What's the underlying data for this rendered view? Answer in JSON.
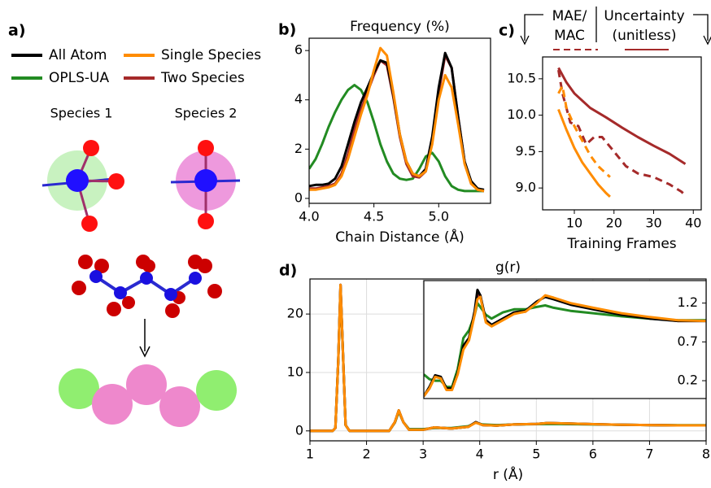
{
  "figure": {
    "panel_label": "a)",
    "species": [
      "Species 1",
      "Species 2"
    ]
  },
  "chart_data": [
    {
      "type": "line",
      "panel_label": "b)",
      "title": "Frequency (%)",
      "xlabel": "Chain Distance (Å)",
      "xlim": [
        4.0,
        5.4
      ],
      "xticks": [
        {
          "value": 4,
          "label": "4.0"
        },
        4.5,
        {
          "value": 5,
          "label": "5.0"
        }
      ],
      "ylim": [
        -0.2,
        6.5
      ],
      "yticks": [
        0,
        2,
        4,
        6
      ],
      "x": [
        4.0,
        4.05,
        4.1,
        4.15,
        4.2,
        4.25,
        4.3,
        4.35,
        4.4,
        4.45,
        4.5,
        4.55,
        4.6,
        4.65,
        4.7,
        4.75,
        4.8,
        4.85,
        4.9,
        4.95,
        5.0,
        5.05,
        5.1,
        5.15,
        5.2,
        5.25,
        5.3,
        5.35
      ],
      "series": [
        {
          "name": "OPLS-UA",
          "color": "#228b22",
          "values": [
            1.2,
            1.6,
            2.2,
            2.9,
            3.5,
            4.0,
            4.4,
            4.6,
            4.4,
            3.9,
            3.1,
            2.2,
            1.5,
            1.0,
            0.8,
            0.75,
            0.8,
            1.2,
            1.7,
            1.85,
            1.5,
            0.9,
            0.5,
            0.35,
            0.3,
            0.3,
            0.3,
            0.3
          ]
        },
        {
          "name": "Two Species",
          "color": "#a52a2a",
          "values": [
            0.4,
            0.4,
            0.45,
            0.5,
            0.6,
            1.0,
            1.8,
            2.8,
            3.6,
            4.3,
            5.0,
            5.6,
            5.4,
            4.1,
            2.5,
            1.4,
            0.9,
            0.85,
            1.1,
            2.3,
            4.3,
            5.8,
            5.3,
            3.3,
            1.5,
            0.6,
            0.35,
            0.3
          ]
        },
        {
          "name": "All Atom",
          "color": "#000000",
          "values": [
            0.5,
            0.55,
            0.55,
            0.6,
            0.8,
            1.3,
            2.2,
            3.1,
            3.9,
            4.5,
            5.1,
            5.6,
            5.5,
            4.2,
            2.6,
            1.5,
            1.0,
            0.9,
            1.2,
            2.5,
            4.5,
            5.9,
            5.3,
            3.3,
            1.5,
            0.7,
            0.4,
            0.35
          ]
        },
        {
          "name": "Single Species",
          "color": "#ff8c00",
          "values": [
            0.35,
            0.35,
            0.4,
            0.45,
            0.55,
            0.9,
            1.6,
            2.5,
            3.4,
            4.2,
            5.2,
            6.1,
            5.8,
            4.3,
            2.6,
            1.5,
            1.0,
            0.9,
            1.1,
            2.2,
            4.0,
            5.0,
            4.5,
            3.0,
            1.4,
            0.6,
            0.35,
            0.3
          ]
        }
      ]
    },
    {
      "type": "line",
      "panel_label": "c)",
      "header": [
        "MAE/",
        "MAC",
        "Uncertainty",
        "(unitless)"
      ],
      "xlabel": "Training Frames",
      "xlim": [
        2,
        42
      ],
      "xticks": [
        10,
        20,
        30,
        40
      ],
      "ylim": [
        8.7,
        10.8
      ],
      "yticks": [
        {
          "value": 9,
          "label": "9.0"
        },
        9.5,
        {
          "value": 10,
          "label": "10.0"
        },
        10.5
      ],
      "series": [
        {
          "color": "#a52a2a",
          "dash": false,
          "x": [
            6,
            8,
            10,
            14,
            18,
            22,
            26,
            30,
            34,
            38
          ],
          "values": [
            10.65,
            10.45,
            10.3,
            10.1,
            9.97,
            9.83,
            9.7,
            9.58,
            9.47,
            9.33
          ]
        },
        {
          "color": "#a52a2a",
          "dash": true,
          "x": [
            6,
            7,
            9,
            11,
            13,
            15,
            17,
            20,
            23,
            26,
            30,
            34,
            37,
            38
          ],
          "values": [
            10.62,
            10.3,
            9.9,
            9.85,
            9.6,
            9.7,
            9.7,
            9.5,
            9.3,
            9.2,
            9.15,
            9.05,
            8.95,
            8.9
          ]
        },
        {
          "color": "#ff8c00",
          "dash": false,
          "x": [
            6,
            8,
            10,
            12,
            14,
            16,
            18,
            19
          ],
          "values": [
            10.08,
            9.8,
            9.55,
            9.35,
            9.2,
            9.05,
            8.93,
            8.88
          ]
        },
        {
          "color": "#ff8c00",
          "dash": true,
          "x": [
            6,
            7,
            8,
            10,
            12,
            14,
            16,
            18,
            19
          ],
          "values": [
            10.3,
            10.4,
            10.1,
            9.85,
            9.65,
            9.45,
            9.3,
            9.2,
            9.15
          ]
        }
      ]
    },
    {
      "type": "line",
      "panel_label": "d)",
      "title": "g(r)",
      "xlabel": "r (Å)",
      "grid": true,
      "xlim": [
        1,
        8
      ],
      "xticks": [
        1,
        2,
        3,
        4,
        5,
        6,
        7,
        8
      ],
      "ylim": [
        -1.7,
        26
      ],
      "yticks": [
        0,
        10,
        20
      ],
      "x": [
        1.0,
        1.3,
        1.4,
        1.45,
        1.5,
        1.54,
        1.58,
        1.63,
        1.7,
        2.0,
        2.4,
        2.5,
        2.57,
        2.65,
        2.75,
        3.0,
        3.2,
        3.5,
        3.8,
        3.93,
        4.05,
        4.3,
        4.6,
        5.0,
        5.2,
        5.6,
        6.0,
        6.5,
        7.0,
        7.5,
        8.0
      ],
      "series": [
        {
          "color": "#228b22",
          "values": [
            0,
            0,
            0,
            0.5,
            12,
            24.5,
            14,
            1,
            0,
            0,
            0,
            1.4,
            3.3,
            1.5,
            0.3,
            0.3,
            0.5,
            0.5,
            0.8,
            1.4,
            1.1,
            1.0,
            1.1,
            1.15,
            1.2,
            1.15,
            1.1,
            1.05,
            1.0,
            0.98,
            0.98
          ]
        },
        {
          "color": "#a52a2a",
          "values": [
            0,
            0,
            0,
            0.5,
            12,
            25,
            14,
            1,
            0,
            0,
            0,
            1.5,
            3.5,
            1.5,
            0.2,
            0.2,
            0.6,
            0.4,
            0.7,
            1.5,
            1.0,
            0.9,
            1.1,
            1.2,
            1.35,
            1.25,
            1.15,
            1.05,
            1.0,
            0.95,
            0.95
          ]
        },
        {
          "color": "#000000",
          "values": [
            0,
            0,
            0,
            0.5,
            12,
            25,
            14,
            1,
            0,
            0,
            0,
            1.5,
            3.5,
            1.5,
            0.2,
            0.2,
            0.6,
            0.4,
            0.7,
            1.5,
            1.0,
            0.9,
            1.1,
            1.2,
            1.35,
            1.25,
            1.15,
            1.05,
            1.0,
            0.95,
            0.95
          ]
        },
        {
          "color": "#ff8c00",
          "values": [
            0,
            0,
            0,
            0.5,
            12,
            25,
            14,
            1,
            0,
            0,
            0,
            1.5,
            3.5,
            1.5,
            0.2,
            0.2,
            0.6,
            0.4,
            0.7,
            1.4,
            1.0,
            0.9,
            1.1,
            1.2,
            1.35,
            1.25,
            1.15,
            1.05,
            1.0,
            0.95,
            0.95
          ]
        }
      ]
    },
    {
      "type": "line",
      "xlim": [
        3,
        8
      ],
      "ylim": [
        -0.03,
        1.49
      ],
      "yticks": [
        0.2,
        0.7,
        1.2
      ],
      "x": [
        3.0,
        3.1,
        3.2,
        3.3,
        3.4,
        3.5,
        3.6,
        3.7,
        3.8,
        3.9,
        3.95,
        4.0,
        4.1,
        4.2,
        4.4,
        4.6,
        4.8,
        5.0,
        5.15,
        5.3,
        5.6,
        6.0,
        6.5,
        7.0,
        7.5,
        8.0
      ],
      "series": [
        {
          "color": "#228b22",
          "values": [
            0.28,
            0.22,
            0.2,
            0.2,
            0.12,
            0.12,
            0.35,
            0.75,
            0.85,
            1.05,
            1.2,
            1.15,
            1.05,
            1.0,
            1.08,
            1.12,
            1.12,
            1.15,
            1.17,
            1.14,
            1.1,
            1.07,
            1.03,
            1.0,
            0.98,
            0.98
          ]
        },
        {
          "color": "#a52a2a",
          "values": [
            0.0,
            0.1,
            0.26,
            0.24,
            0.09,
            0.09,
            0.29,
            0.62,
            0.73,
            1.07,
            1.3,
            1.3,
            0.96,
            0.91,
            0.99,
            1.07,
            1.09,
            1.21,
            1.29,
            1.26,
            1.19,
            1.13,
            1.06,
            1.01,
            0.97,
            0.97
          ]
        },
        {
          "color": "#000000",
          "values": [
            0.0,
            0.12,
            0.27,
            0.25,
            0.1,
            0.1,
            0.3,
            0.65,
            0.75,
            1.1,
            1.37,
            1.3,
            0.98,
            0.92,
            1.0,
            1.08,
            1.1,
            1.22,
            1.28,
            1.25,
            1.18,
            1.12,
            1.05,
            1.0,
            0.97,
            0.97
          ]
        },
        {
          "color": "#ff8c00",
          "values": [
            0.0,
            0.1,
            0.25,
            0.23,
            0.08,
            0.08,
            0.28,
            0.6,
            0.72,
            1.05,
            1.25,
            1.28,
            0.95,
            0.9,
            0.98,
            1.06,
            1.09,
            1.2,
            1.3,
            1.27,
            1.2,
            1.14,
            1.07,
            1.02,
            0.98,
            0.97
          ]
        }
      ]
    }
  ]
}
